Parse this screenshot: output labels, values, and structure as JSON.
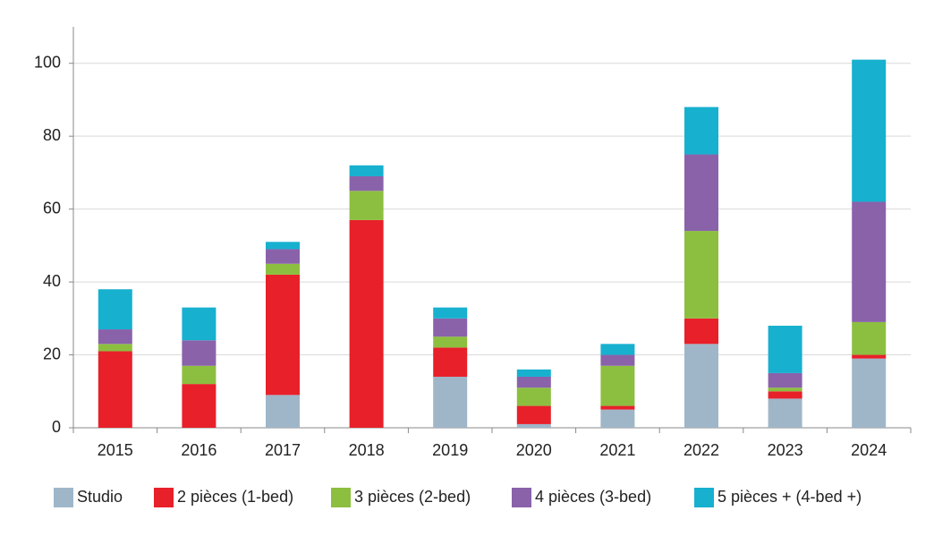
{
  "chart_data": {
    "type": "stacked-bar",
    "categories": [
      "2015",
      "2016",
      "2017",
      "2018",
      "2019",
      "2020",
      "2021",
      "2022",
      "2023",
      "2024"
    ],
    "series": [
      {
        "name": "Studio",
        "color": "#9fb6c8",
        "values": [
          0,
          0,
          9,
          0,
          14,
          1,
          5,
          23,
          8,
          19
        ]
      },
      {
        "name": "2 pièces (1-bed)",
        "color": "#e8202a",
        "values": [
          21,
          12,
          33,
          57,
          8,
          5,
          1,
          7,
          2,
          1
        ]
      },
      {
        "name": "3 pièces (2-bed)",
        "color": "#8cbf3f",
        "values": [
          2,
          5,
          3,
          8,
          3,
          5,
          11,
          24,
          1,
          9
        ]
      },
      {
        "name": "4 pièces (3-bed)",
        "color": "#8a62aa",
        "values": [
          4,
          7,
          4,
          4,
          5,
          3,
          3,
          21,
          4,
          33
        ]
      },
      {
        "name": "5 pièces + (4-bed +)",
        "color": "#17b0cf",
        "values": [
          11,
          9,
          2,
          3,
          3,
          2,
          3,
          13,
          13,
          39
        ]
      }
    ],
    "ylim": [
      0,
      110
    ],
    "yticks": [
      0,
      20,
      40,
      60,
      80,
      100
    ],
    "grid": true
  }
}
